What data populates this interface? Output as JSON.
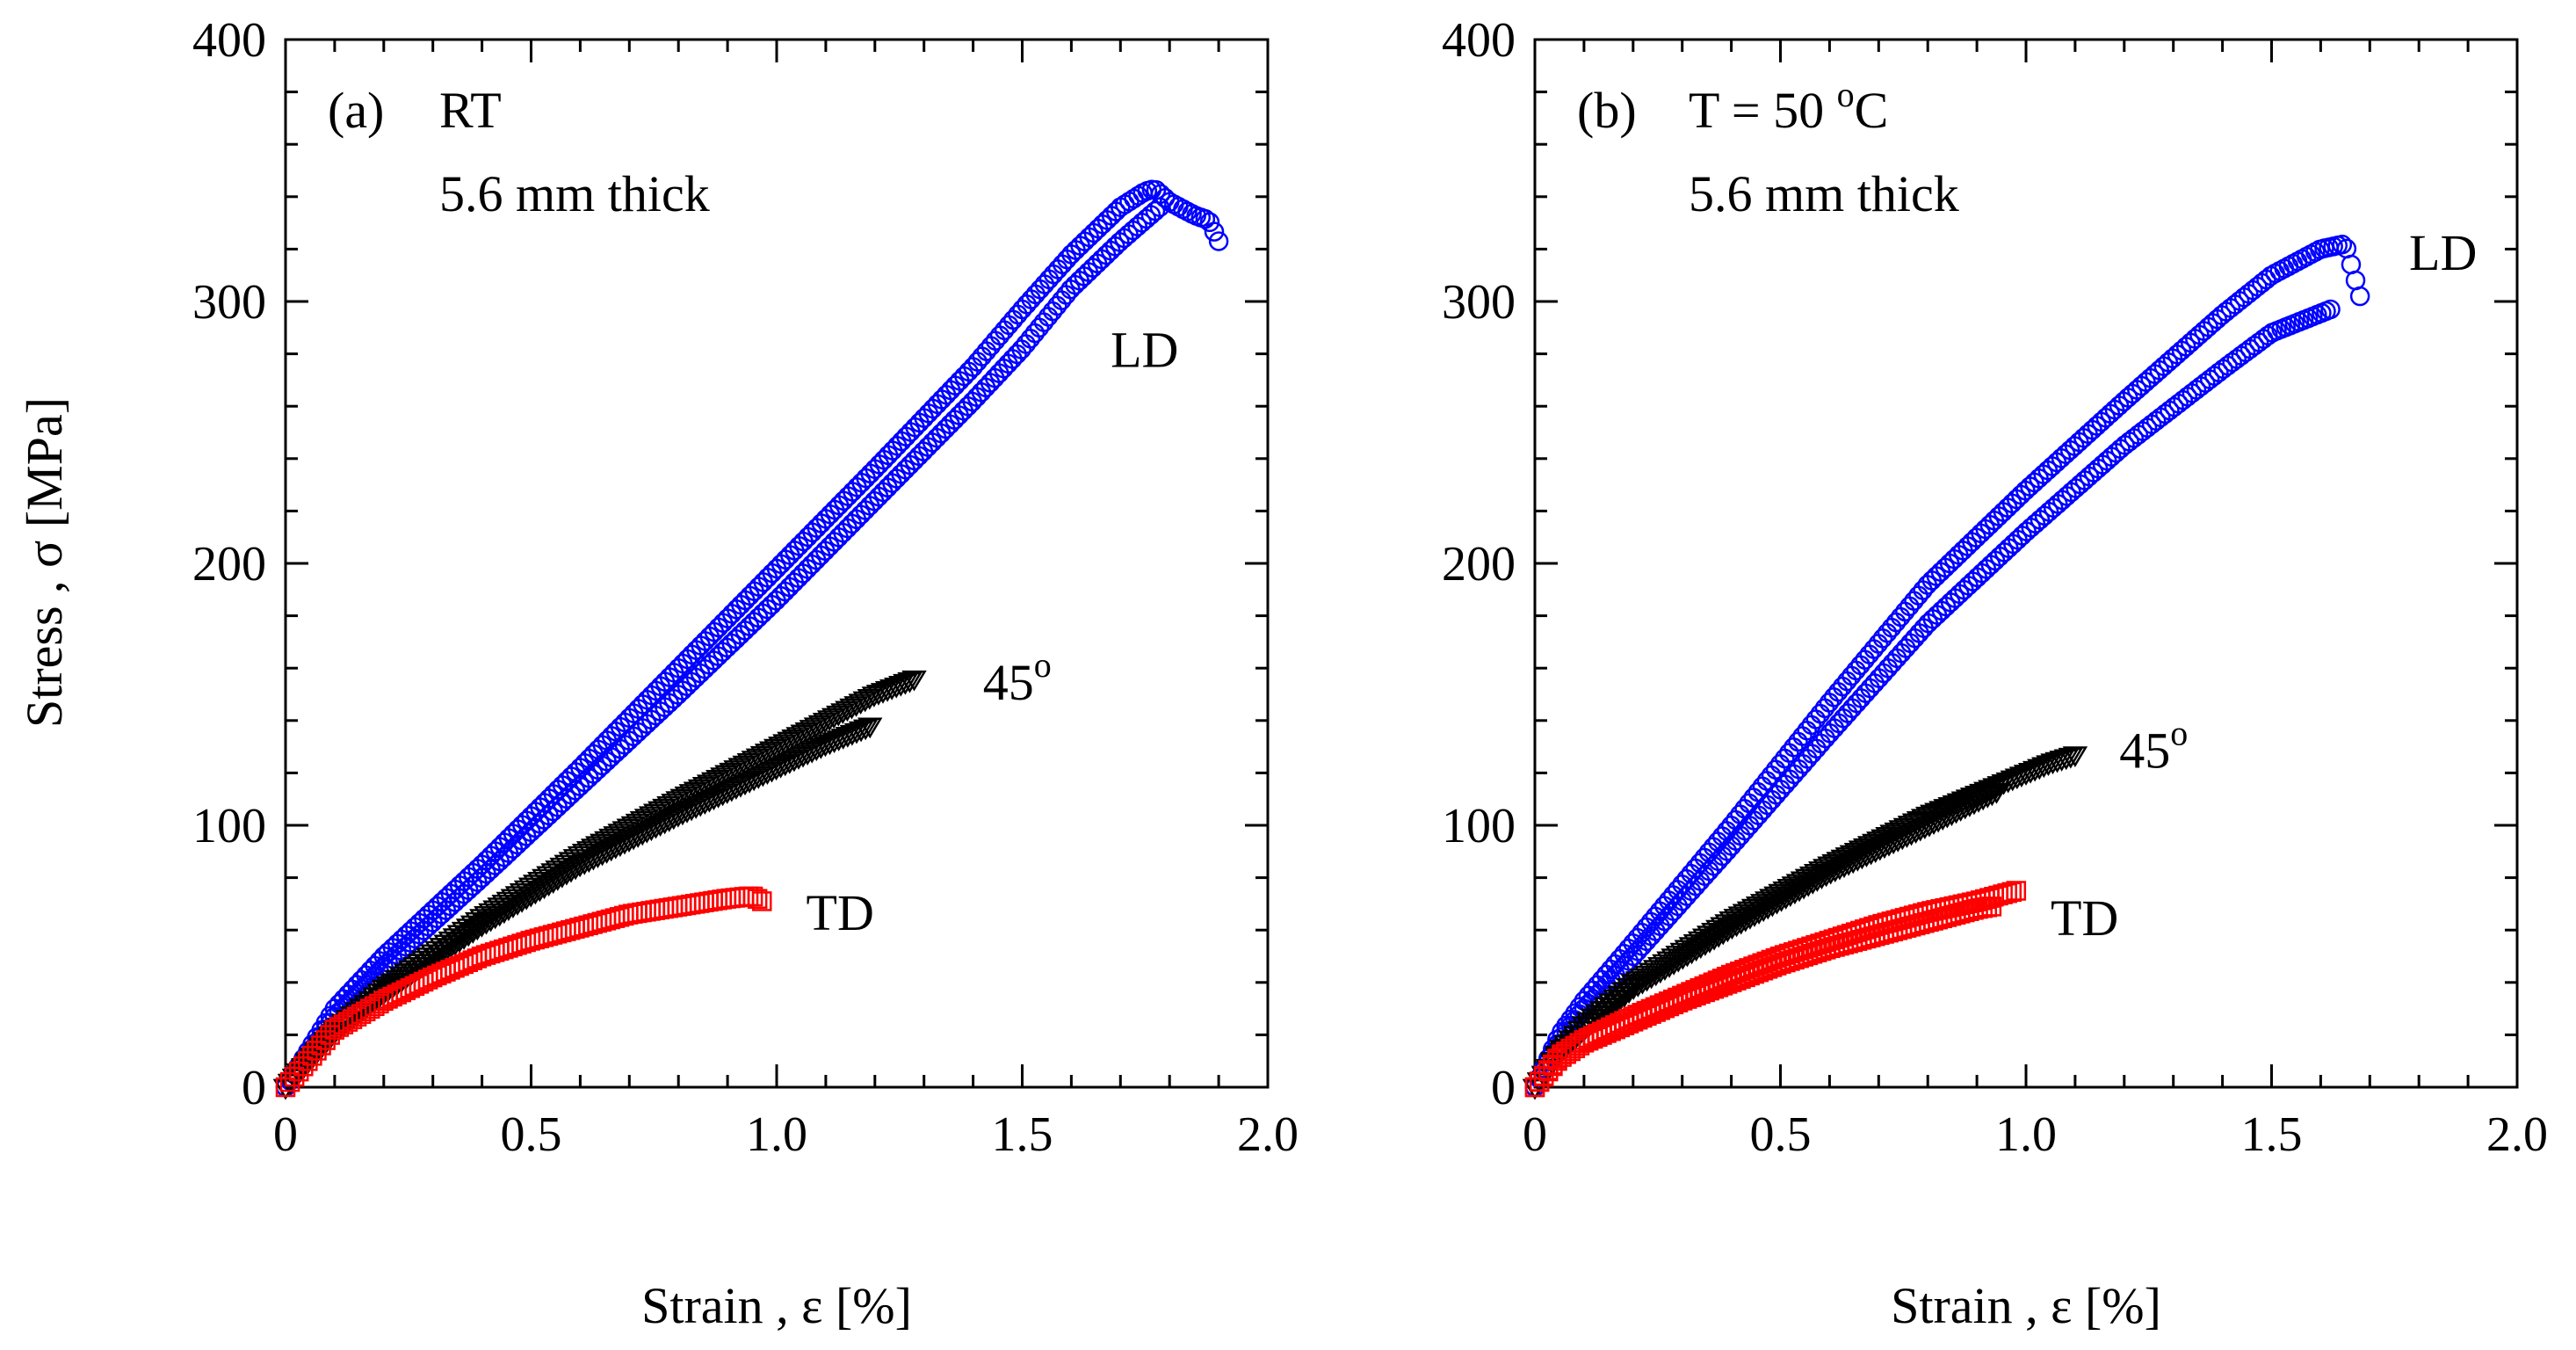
{
  "shared_ylabel": "Stress , σ [MPa]",
  "colors": {
    "LD": "#0000ff",
    "45": "#000000",
    "TD": "#ff0000"
  },
  "chart_data": [
    {
      "type": "scatter",
      "panel_label": "(a)",
      "condition": "RT",
      "thickness": "5.6 mm thick",
      "xlabel": "Strain , ε [%]",
      "ylabel": "Stress , σ [MPa]",
      "xlim": [
        0,
        2.0
      ],
      "ylim": [
        0,
        400
      ],
      "xticks": [
        0,
        0.5,
        1.0,
        1.5,
        2.0
      ],
      "xtick_labels": [
        "0",
        "0.5",
        "1.0",
        "1.5",
        "2.0"
      ],
      "yticks": [
        0,
        100,
        200,
        300,
        400
      ],
      "ytick_labels": [
        "0",
        "100",
        "200",
        "300",
        "400"
      ],
      "annotations": [
        {
          "text": "LD",
          "x": 1.68,
          "y": 275
        },
        {
          "text": "45",
          "sup": "o",
          "x": 1.42,
          "y": 148
        },
        {
          "text": "TD",
          "x": 1.06,
          "y": 60
        }
      ],
      "series": [
        {
          "name": "LD",
          "marker": "circle",
          "color": "#0000ff",
          "x": [
            0,
            0.1,
            0.2,
            0.4,
            0.6,
            0.8,
            1.0,
            1.2,
            1.4,
            1.5,
            1.6,
            1.7,
            1.75,
            1.77,
            1.8,
            1.85,
            1.88,
            1.9
          ],
          "y": [
            0,
            30,
            50,
            85,
            122,
            160,
            198,
            236,
            275,
            297,
            318,
            336,
            342,
            343,
            338,
            333,
            331,
            323
          ]
        },
        {
          "name": "LD",
          "marker": "circle",
          "color": "#0000ff",
          "x": [
            0,
            0.1,
            0.2,
            0.4,
            0.6,
            0.8,
            1.0,
            1.2,
            1.4,
            1.5,
            1.6,
            1.7,
            1.78
          ],
          "y": [
            0,
            27,
            46,
            80,
            115,
            150,
            186,
            224,
            262,
            282,
            305,
            323,
            336
          ]
        },
        {
          "name": "45",
          "marker": "triangle-down",
          "color": "#000000",
          "x": [
            0,
            0.1,
            0.2,
            0.4,
            0.6,
            0.8,
            1.0,
            1.2,
            1.28
          ],
          "y": [
            0,
            22,
            38,
            65,
            89,
            110,
            130,
            150,
            156
          ]
        },
        {
          "name": "45",
          "marker": "triangle-down",
          "color": "#000000",
          "x": [
            0,
            0.1,
            0.2,
            0.4,
            0.6,
            0.8,
            1.0,
            1.1,
            1.19
          ],
          "y": [
            0,
            21,
            36,
            62,
            85,
            104,
            122,
            131,
            138
          ]
        },
        {
          "name": "TD",
          "marker": "square",
          "color": "#ff0000",
          "x": [
            0,
            0.1,
            0.2,
            0.3,
            0.4,
            0.5,
            0.6,
            0.7,
            0.8,
            0.9,
            0.95,
            0.97
          ],
          "y": [
            0,
            22,
            33,
            42,
            50,
            56,
            61,
            66,
            69,
            72,
            73,
            71
          ]
        }
      ]
    },
    {
      "type": "scatter",
      "panel_label": "(b)",
      "condition": "T = 50",
      "condition_sup": "o",
      "condition_unit": "C",
      "thickness": "5.6 mm thick",
      "xlabel": "Strain , ε [%]",
      "ylabel": "Stress , σ [MPa]",
      "xlim": [
        0,
        2.0
      ],
      "ylim": [
        0,
        400
      ],
      "xticks": [
        0,
        0.5,
        1.0,
        1.5,
        2.0
      ],
      "xtick_labels": [
        "0",
        "0.5",
        "1.0",
        "1.5",
        "2.0"
      ],
      "yticks": [
        0,
        100,
        200,
        300,
        400
      ],
      "ytick_labels": [
        "0",
        "100",
        "200",
        "300",
        "400"
      ],
      "annotations": [
        {
          "text": "LD",
          "x": 1.78,
          "y": 312
        },
        {
          "text": "45",
          "sup": "o",
          "x": 1.19,
          "y": 122
        },
        {
          "text": "TD",
          "x": 1.05,
          "y": 58
        }
      ],
      "series": [
        {
          "name": "LD",
          "marker": "circle",
          "color": "#0000ff",
          "x": [
            0,
            0.05,
            0.1,
            0.2,
            0.4,
            0.6,
            0.8,
            1.0,
            1.2,
            1.4,
            1.5,
            1.6,
            1.65,
            1.68
          ],
          "y": [
            0,
            20,
            33,
            55,
            100,
            147,
            192,
            228,
            262,
            295,
            310,
            320,
            322,
            302
          ]
        },
        {
          "name": "LD",
          "marker": "circle",
          "color": "#0000ff",
          "x": [
            0,
            0.05,
            0.1,
            0.2,
            0.4,
            0.6,
            0.8,
            1.0,
            1.2,
            1.4,
            1.5,
            1.58,
            1.62
          ],
          "y": [
            0,
            18,
            30,
            50,
            92,
            135,
            177,
            212,
            245,
            274,
            288,
            294,
            297
          ]
        },
        {
          "name": "45",
          "marker": "triangle-down",
          "color": "#000000",
          "x": [
            0,
            0.05,
            0.1,
            0.2,
            0.4,
            0.6,
            0.8,
            0.95,
            1.05,
            1.1
          ],
          "y": [
            0,
            14,
            24,
            40,
            64,
            85,
            104,
            116,
            124,
            127
          ]
        },
        {
          "name": "45",
          "marker": "triangle-down",
          "color": "#000000",
          "x": [
            0,
            0.05,
            0.1,
            0.2,
            0.4,
            0.6,
            0.8,
            0.94
          ],
          "y": [
            0,
            13,
            22,
            38,
            61,
            82,
            100,
            113
          ]
        },
        {
          "name": "TD",
          "marker": "square",
          "color": "#ff0000",
          "x": [
            0,
            0.05,
            0.1,
            0.2,
            0.3,
            0.4,
            0.5,
            0.6,
            0.7,
            0.8,
            0.9,
            0.98
          ],
          "y": [
            0,
            12,
            18,
            27,
            35,
            43,
            50,
            56,
            62,
            67,
            71,
            75
          ]
        },
        {
          "name": "TD",
          "marker": "square",
          "color": "#ff0000",
          "x": [
            0,
            0.05,
            0.1,
            0.2,
            0.3,
            0.4,
            0.5,
            0.6,
            0.7,
            0.8,
            0.9,
            0.93
          ],
          "y": [
            0,
            11,
            17,
            25,
            33,
            40,
            47,
            53,
            58,
            63,
            68,
            69
          ]
        }
      ]
    }
  ]
}
